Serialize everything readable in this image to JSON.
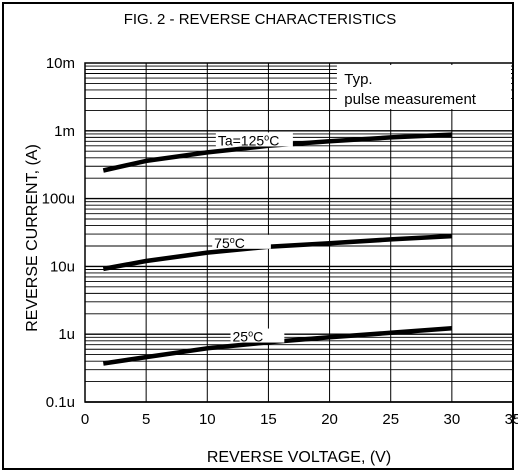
{
  "chart_data": {
    "type": "line",
    "title": "FIG. 2 - REVERSE CHARACTERISTICS",
    "xlabel": "REVERSE VOLTAGE, (V)",
    "ylabel": "REVERSE CURRENT, (A)",
    "xlim": [
      0,
      35
    ],
    "ylim": [
      1e-07,
      0.01
    ],
    "yscale": "log",
    "grid": true,
    "x_ticks": [
      0,
      5,
      10,
      15,
      20,
      25,
      30,
      35
    ],
    "x_tick_labels": [
      "0",
      "5",
      "10",
      "15",
      "20",
      "25",
      "30",
      "35"
    ],
    "y_ticks": [
      1e-07,
      1e-06,
      1e-05,
      0.0001,
      0.001,
      0.01
    ],
    "y_tick_labels": [
      "0.1u",
      "1u",
      "10u",
      "100u",
      "1m",
      "10m"
    ],
    "annotation": [
      "Typ.",
      "pulse measurement"
    ],
    "series": [
      {
        "name": "Ta=125°C",
        "label_parts": [
          "Ta=125",
          "o",
          "C"
        ],
        "x": [
          1.5,
          5,
          10,
          15,
          20,
          25,
          30
        ],
        "y": [
          0.00026,
          0.00036,
          0.00048,
          0.0006,
          0.0007,
          0.0008,
          0.00088
        ]
      },
      {
        "name": "75°C",
        "label_parts": [
          "75",
          "o",
          "C"
        ],
        "x": [
          1.5,
          5,
          10,
          15,
          20,
          25,
          30
        ],
        "y": [
          9.2e-06,
          1.2e-05,
          1.6e-05,
          1.95e-05,
          2.2e-05,
          2.5e-05,
          2.8e-05
        ]
      },
      {
        "name": "25°C",
        "label_parts": [
          "25",
          "o",
          "C"
        ],
        "x": [
          1.5,
          5,
          10,
          15,
          20,
          25,
          30
        ],
        "y": [
          3.7e-07,
          4.6e-07,
          6.2e-07,
          7.6e-07,
          9e-07,
          1.05e-06,
          1.22e-06
        ]
      }
    ]
  }
}
